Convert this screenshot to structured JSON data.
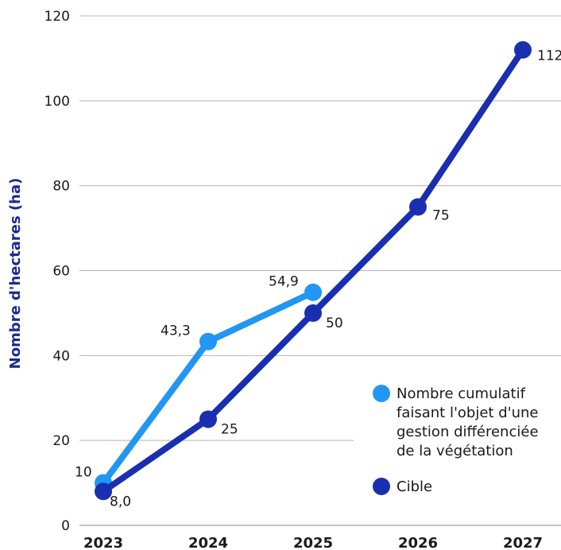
{
  "chart_data": {
    "type": "line",
    "ylabel": "Nombre d'hectares (ha)",
    "x": [
      "2023",
      "2024",
      "2025",
      "2026",
      "2027"
    ],
    "ylim": [
      0,
      120
    ],
    "yticks": [
      "0",
      "20",
      "40",
      "60",
      "80",
      "100",
      "120"
    ],
    "grid": "horizontal",
    "legend_position": "right",
    "series": [
      {
        "name": "Nombre cumulatif faisant l'objet d'une gestion différenciée de la végétation",
        "legend_lines": [
          "Nombre cumulatif",
          "faisant l'objet d'une",
          "gestion différenciée",
          "de la végétation"
        ],
        "color": "#2196f3",
        "x": [
          "2023",
          "2024",
          "2025"
        ],
        "values": [
          10,
          43.3,
          54.9
        ],
        "labels": [
          "10",
          "43,3",
          "54,9"
        ]
      },
      {
        "name": "Cible",
        "legend_lines": [
          "Cible"
        ],
        "color": "#1a2fb0",
        "x": [
          "2023",
          "2024",
          "2025",
          "2026",
          "2027"
        ],
        "values": [
          8.0,
          25,
          50,
          75,
          112
        ],
        "labels": [
          "8,0",
          "25",
          "50",
          "75",
          "112"
        ]
      }
    ]
  }
}
